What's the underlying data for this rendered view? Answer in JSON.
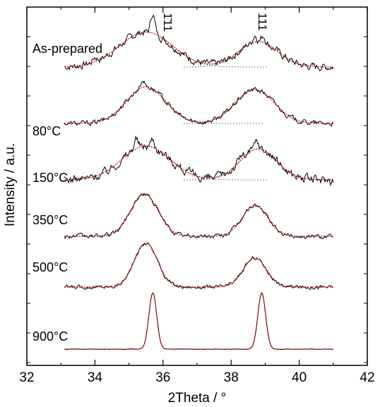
{
  "chart_data": {
    "type": "line",
    "title": "",
    "xlabel": "2Theta / °",
    "ylabel": "Intensity / a.u.",
    "xlim": [
      32,
      42
    ],
    "x_ticks": [
      32,
      34,
      36,
      38,
      40,
      42
    ],
    "y_ticks_labeled": false,
    "grid": false,
    "legend": "none",
    "colors": {
      "measured": "#000000",
      "fit": "#cc0000",
      "component": "#555555"
    },
    "peak_labels": [
      {
        "text": "1̄11",
        "x": 36.0
      },
      {
        "text": "111",
        "x": 38.8
      }
    ],
    "series": [
      {
        "name": "As-prepared",
        "offset": 5.0,
        "peak1": {
          "center": 35.5,
          "height": 0.62,
          "width": 1.15
        },
        "peak2": {
          "center": 38.8,
          "height": 0.45,
          "width": 0.85
        },
        "noise": 0.12,
        "spikes": [
          [
            35.7,
            0.35
          ],
          [
            38.7,
            0.12
          ],
          [
            38.95,
            0.12
          ],
          [
            34.0,
            0.08
          ]
        ],
        "components_dotted": true
      },
      {
        "name": "80°C",
        "offset": 4.0,
        "peak1": {
          "center": 35.5,
          "height": 0.65,
          "width": 0.85
        },
        "peak2": {
          "center": 38.7,
          "height": 0.6,
          "width": 0.85
        },
        "noise": 0.08,
        "spikes": [
          [
            35.4,
            0.12
          ]
        ],
        "components_dotted": true
      },
      {
        "name": "150°C",
        "offset": 3.0,
        "peak1": {
          "center": 35.5,
          "height": 0.6,
          "width": 1.05
        },
        "peak2": {
          "center": 38.8,
          "height": 0.55,
          "width": 0.8
        },
        "noise": 0.14,
        "spikes": [
          [
            35.2,
            0.18
          ],
          [
            35.7,
            0.15
          ],
          [
            38.75,
            0.14
          ],
          [
            38.3,
            0.08
          ]
        ],
        "components_dotted": true
      },
      {
        "name": "350°C",
        "offset": 2.0,
        "peak1": {
          "center": 35.45,
          "height": 0.75,
          "width": 0.6
        },
        "peak2": {
          "center": 38.7,
          "height": 0.55,
          "width": 0.55
        },
        "noise": 0.07,
        "spikes": [],
        "components_dotted": false
      },
      {
        "name": "500°C",
        "offset": 1.1,
        "peak1": {
          "center": 35.5,
          "height": 0.78,
          "width": 0.5
        },
        "peak2": {
          "center": 38.7,
          "height": 0.52,
          "width": 0.5
        },
        "noise": 0.06,
        "spikes": [],
        "components_dotted": false
      },
      {
        "name": "900°C",
        "offset": 0.0,
        "peak1": {
          "center": 35.7,
          "height": 1.0,
          "width": 0.17
        },
        "peak2": {
          "center": 38.9,
          "height": 1.0,
          "width": 0.17
        },
        "noise": 0.01,
        "spikes": [],
        "components_dotted": false
      }
    ]
  }
}
